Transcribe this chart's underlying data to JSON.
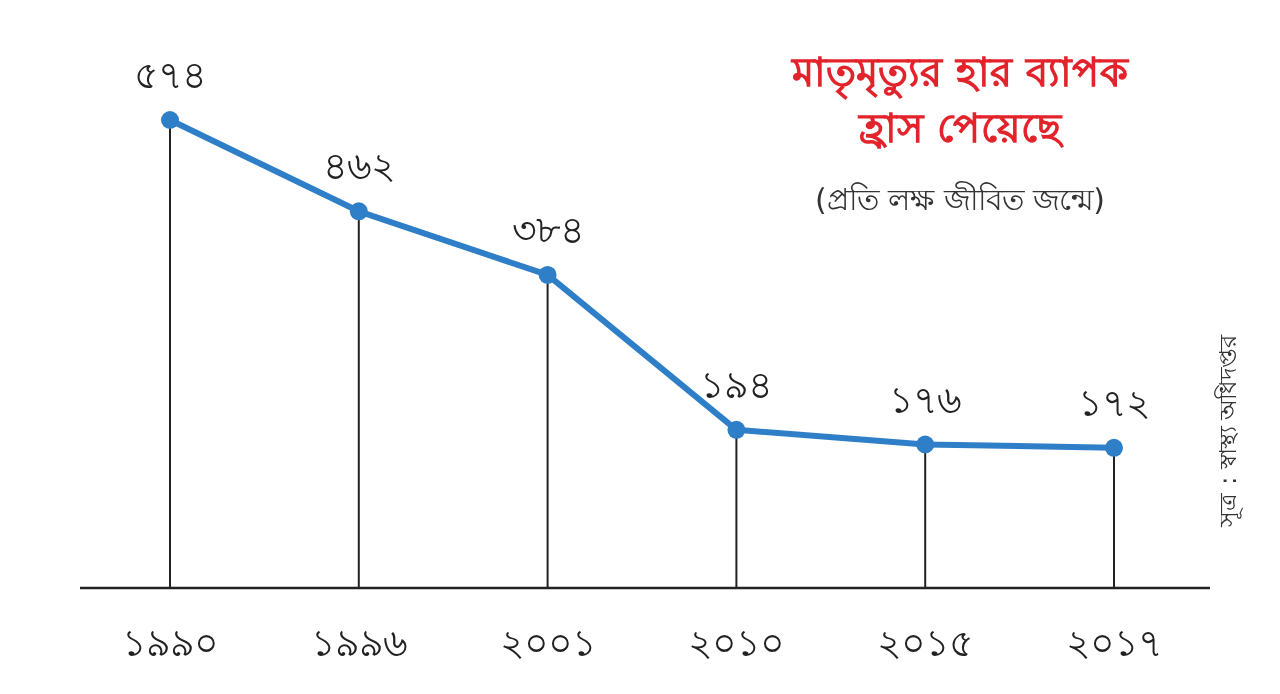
{
  "chart_data": {
    "type": "line",
    "title": "মাতৃমৃত্যুর হার ব্যাপক হ্রাস পেয়েছে",
    "subtitle": "(প্রতি লক্ষ জীবিত জন্মে)",
    "categories": [
      "১৯৯০",
      "১৯৯৬",
      "২০০১",
      "২০১০",
      "২০১৫",
      "২০১৭"
    ],
    "values": [
      574,
      462,
      384,
      194,
      176,
      172
    ],
    "value_labels": [
      "৫৭৪",
      "৪৬২",
      "৩৮৪",
      "১৯৪",
      "১৭৬",
      "১৭২"
    ],
    "color": "#2f7fc8",
    "marker": "circle",
    "grid": "x",
    "annotations": [
      "সূত্র : স্বাস্থ্য অধিদপ্তর"
    ]
  }
}
